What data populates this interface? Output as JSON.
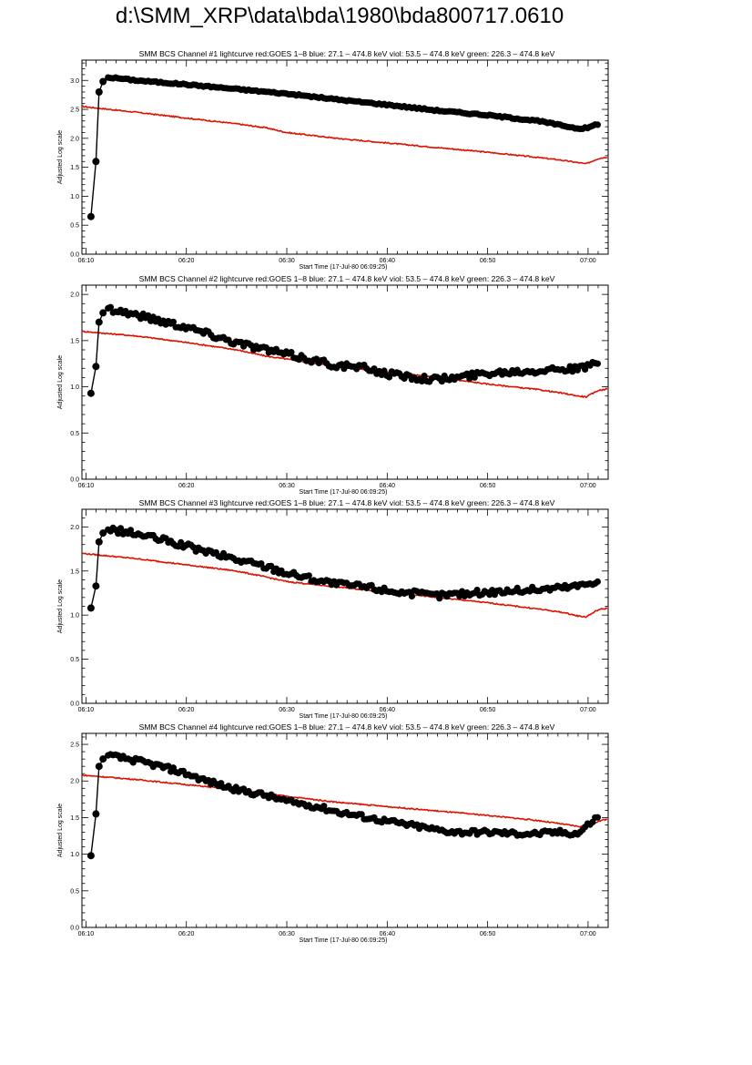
{
  "page_title": "d:\\SMM_XRP\\data\\bda\\1980\\bda800717.0610",
  "colors": {
    "axis": "#000000",
    "series_black": "#000000",
    "series_red": "#dd1100"
  },
  "chart_data": [
    {
      "type": "line",
      "title": "SMM BCS Channel #1 lightcurve  red:GOES 1–8  blue: 27.1 – 474.8 keV  viol: 53.5 – 474.8 keV  green: 226.3 – 474.8 keV",
      "xlabel": "Start Time (17-Jul-80 06:09:25)",
      "ylabel": "Adjusted Log scale",
      "xlim": [
        -0.4,
        52.0
      ],
      "ylim": [
        0.0,
        3.35
      ],
      "xticks": [
        "06:10",
        "06:20",
        "06:30",
        "06:40",
        "06:50",
        "07:00"
      ],
      "yticks": [
        "0.0",
        "0.5",
        "1.0",
        "1.5",
        "2.0",
        "2.5",
        "3.0"
      ],
      "x_unit": "minutes after 06:10",
      "series": [
        {
          "color": "red",
          "x": [
            -0.4,
            5,
            10,
            15,
            18,
            20,
            25,
            30,
            35,
            40,
            45,
            47.5,
            49,
            49.8,
            51,
            52
          ],
          "y": [
            2.55,
            2.45,
            2.35,
            2.25,
            2.18,
            2.1,
            2.0,
            1.92,
            1.84,
            1.76,
            1.67,
            1.62,
            1.58,
            1.56,
            1.65,
            1.68
          ]
        },
        {
          "color": "black",
          "x": [
            0.5,
            1.0,
            1.3,
            1.7,
            2.2,
            3,
            5,
            10,
            15,
            20,
            25,
            30,
            35,
            40,
            45,
            49,
            50,
            50.5,
            51
          ],
          "y": [
            0.65,
            1.6,
            2.8,
            2.98,
            3.05,
            3.04,
            3.0,
            2.93,
            2.85,
            2.77,
            2.67,
            2.58,
            2.48,
            2.4,
            2.3,
            2.17,
            2.18,
            2.22,
            2.25
          ]
        }
      ]
    },
    {
      "type": "line",
      "title": "SMM BCS Channel #2 lightcurve  red:GOES 1–8  blue: 27.1 – 474.8 keV  viol: 53.5 – 474.8 keV  green: 226.3 – 474.8 keV",
      "xlabel": "Start Time (17-Jul-80 06:09:25)",
      "ylabel": "Adjusted Log scale",
      "xlim": [
        -0.4,
        52.0
      ],
      "ylim": [
        0.0,
        2.1
      ],
      "xticks": [
        "06:10",
        "06:20",
        "06:30",
        "06:40",
        "06:50",
        "07:00"
      ],
      "yticks": [
        "0.0",
        "0.5",
        "1.0",
        "1.5",
        "2.0"
      ],
      "x_unit": "minutes after 06:10",
      "series": [
        {
          "color": "red",
          "x": [
            -0.4,
            5,
            10,
            15,
            18,
            20,
            25,
            30,
            35,
            40,
            45,
            47.5,
            49,
            49.8,
            51,
            52
          ],
          "y": [
            1.6,
            1.55,
            1.48,
            1.4,
            1.33,
            1.3,
            1.22,
            1.16,
            1.1,
            1.03,
            0.97,
            0.93,
            0.9,
            0.89,
            0.96,
            0.98
          ]
        },
        {
          "color": "black",
          "x": [
            0.5,
            1.0,
            1.3,
            1.7,
            2.2,
            3,
            5,
            8,
            10,
            12,
            15,
            18,
            20,
            23,
            25,
            28,
            30,
            33,
            35,
            37,
            40,
            43,
            45,
            47,
            49,
            50,
            51
          ],
          "y": [
            0.93,
            1.22,
            1.7,
            1.8,
            1.85,
            1.83,
            1.78,
            1.7,
            1.65,
            1.58,
            1.48,
            1.4,
            1.35,
            1.28,
            1.23,
            1.2,
            1.14,
            1.1,
            1.08,
            1.1,
            1.15,
            1.17,
            1.18,
            1.2,
            1.19,
            1.22,
            1.28
          ]
        }
      ]
    },
    {
      "type": "line",
      "title": "SMM BCS Channel #3 lightcurve  red:GOES 1–8  blue: 27.1 – 474.8 keV  viol: 53.5 – 474.8 keV  green: 226.3 – 474.8 keV",
      "xlabel": "Start Time (17-Jul-80 06:09:25)",
      "ylabel": "Adjusted Log scale",
      "xlim": [
        -0.4,
        52.0
      ],
      "ylim": [
        0.0,
        2.2
      ],
      "xticks": [
        "06:10",
        "06:20",
        "06:30",
        "06:40",
        "06:50",
        "07:00"
      ],
      "yticks": [
        "0.0",
        "0.5",
        "1.0",
        "1.5",
        "2.0"
      ],
      "x_unit": "minutes after 06:10",
      "series": [
        {
          "color": "red",
          "x": [
            -0.4,
            5,
            10,
            15,
            18,
            20,
            25,
            30,
            35,
            40,
            45,
            47.5,
            49,
            49.8,
            51,
            52
          ],
          "y": [
            1.7,
            1.64,
            1.57,
            1.5,
            1.43,
            1.38,
            1.32,
            1.26,
            1.2,
            1.14,
            1.07,
            1.03,
            0.99,
            0.98,
            1.06,
            1.08
          ]
        },
        {
          "color": "black",
          "x": [
            0.5,
            1.0,
            1.3,
            1.7,
            2.2,
            3,
            5,
            8,
            10,
            12,
            15,
            18,
            20,
            23,
            25,
            28,
            30,
            33,
            35,
            37,
            40,
            43,
            45,
            47,
            49,
            50,
            51
          ],
          "y": [
            1.08,
            1.33,
            1.83,
            1.93,
            1.97,
            1.96,
            1.92,
            1.84,
            1.78,
            1.72,
            1.63,
            1.55,
            1.48,
            1.4,
            1.35,
            1.32,
            1.28,
            1.24,
            1.22,
            1.24,
            1.26,
            1.28,
            1.29,
            1.31,
            1.33,
            1.36,
            1.4
          ]
        }
      ]
    },
    {
      "type": "line",
      "title": "SMM BCS Channel #4 lightcurve  red:GOES 1–8  blue: 27.1 – 474.8 keV  viol: 53.5 – 474.8 keV  green: 226.3 – 474.8 keV",
      "xlabel": "Start Time (17-Jul-80 06:09:25)",
      "ylabel": "Adjusted Log scale",
      "xlim": [
        -0.4,
        52.0
      ],
      "ylim": [
        0.0,
        2.65
      ],
      "xticks": [
        "06:10",
        "06:20",
        "06:30",
        "06:40",
        "06:50",
        "07:00"
      ],
      "yticks": [
        "0.0",
        "0.5",
        "1.0",
        "1.5",
        "2.0",
        "2.5"
      ],
      "x_unit": "minutes after 06:10",
      "series": [
        {
          "color": "red",
          "x": [
            -0.4,
            5,
            10,
            15,
            18,
            20,
            25,
            30,
            35,
            40,
            45,
            47.5,
            49,
            49.8,
            51,
            52
          ],
          "y": [
            2.08,
            2.02,
            1.95,
            1.88,
            1.83,
            1.79,
            1.71,
            1.65,
            1.59,
            1.53,
            1.46,
            1.41,
            1.38,
            1.37,
            1.45,
            1.48
          ]
        },
        {
          "color": "black",
          "x": [
            0.5,
            1.0,
            1.3,
            1.7,
            2.2,
            3,
            5,
            8,
            10,
            12,
            15,
            18,
            20,
            23,
            25,
            28,
            30,
            33,
            35,
            37,
            40,
            43,
            45,
            47,
            49,
            50,
            51
          ],
          "y": [
            0.98,
            1.55,
            2.2,
            2.3,
            2.35,
            2.33,
            2.28,
            2.18,
            2.1,
            2.0,
            1.88,
            1.8,
            1.72,
            1.65,
            1.58,
            1.5,
            1.45,
            1.38,
            1.33,
            1.3,
            1.3,
            1.28,
            1.28,
            1.3,
            1.28,
            1.4,
            1.52
          ]
        }
      ]
    }
  ]
}
